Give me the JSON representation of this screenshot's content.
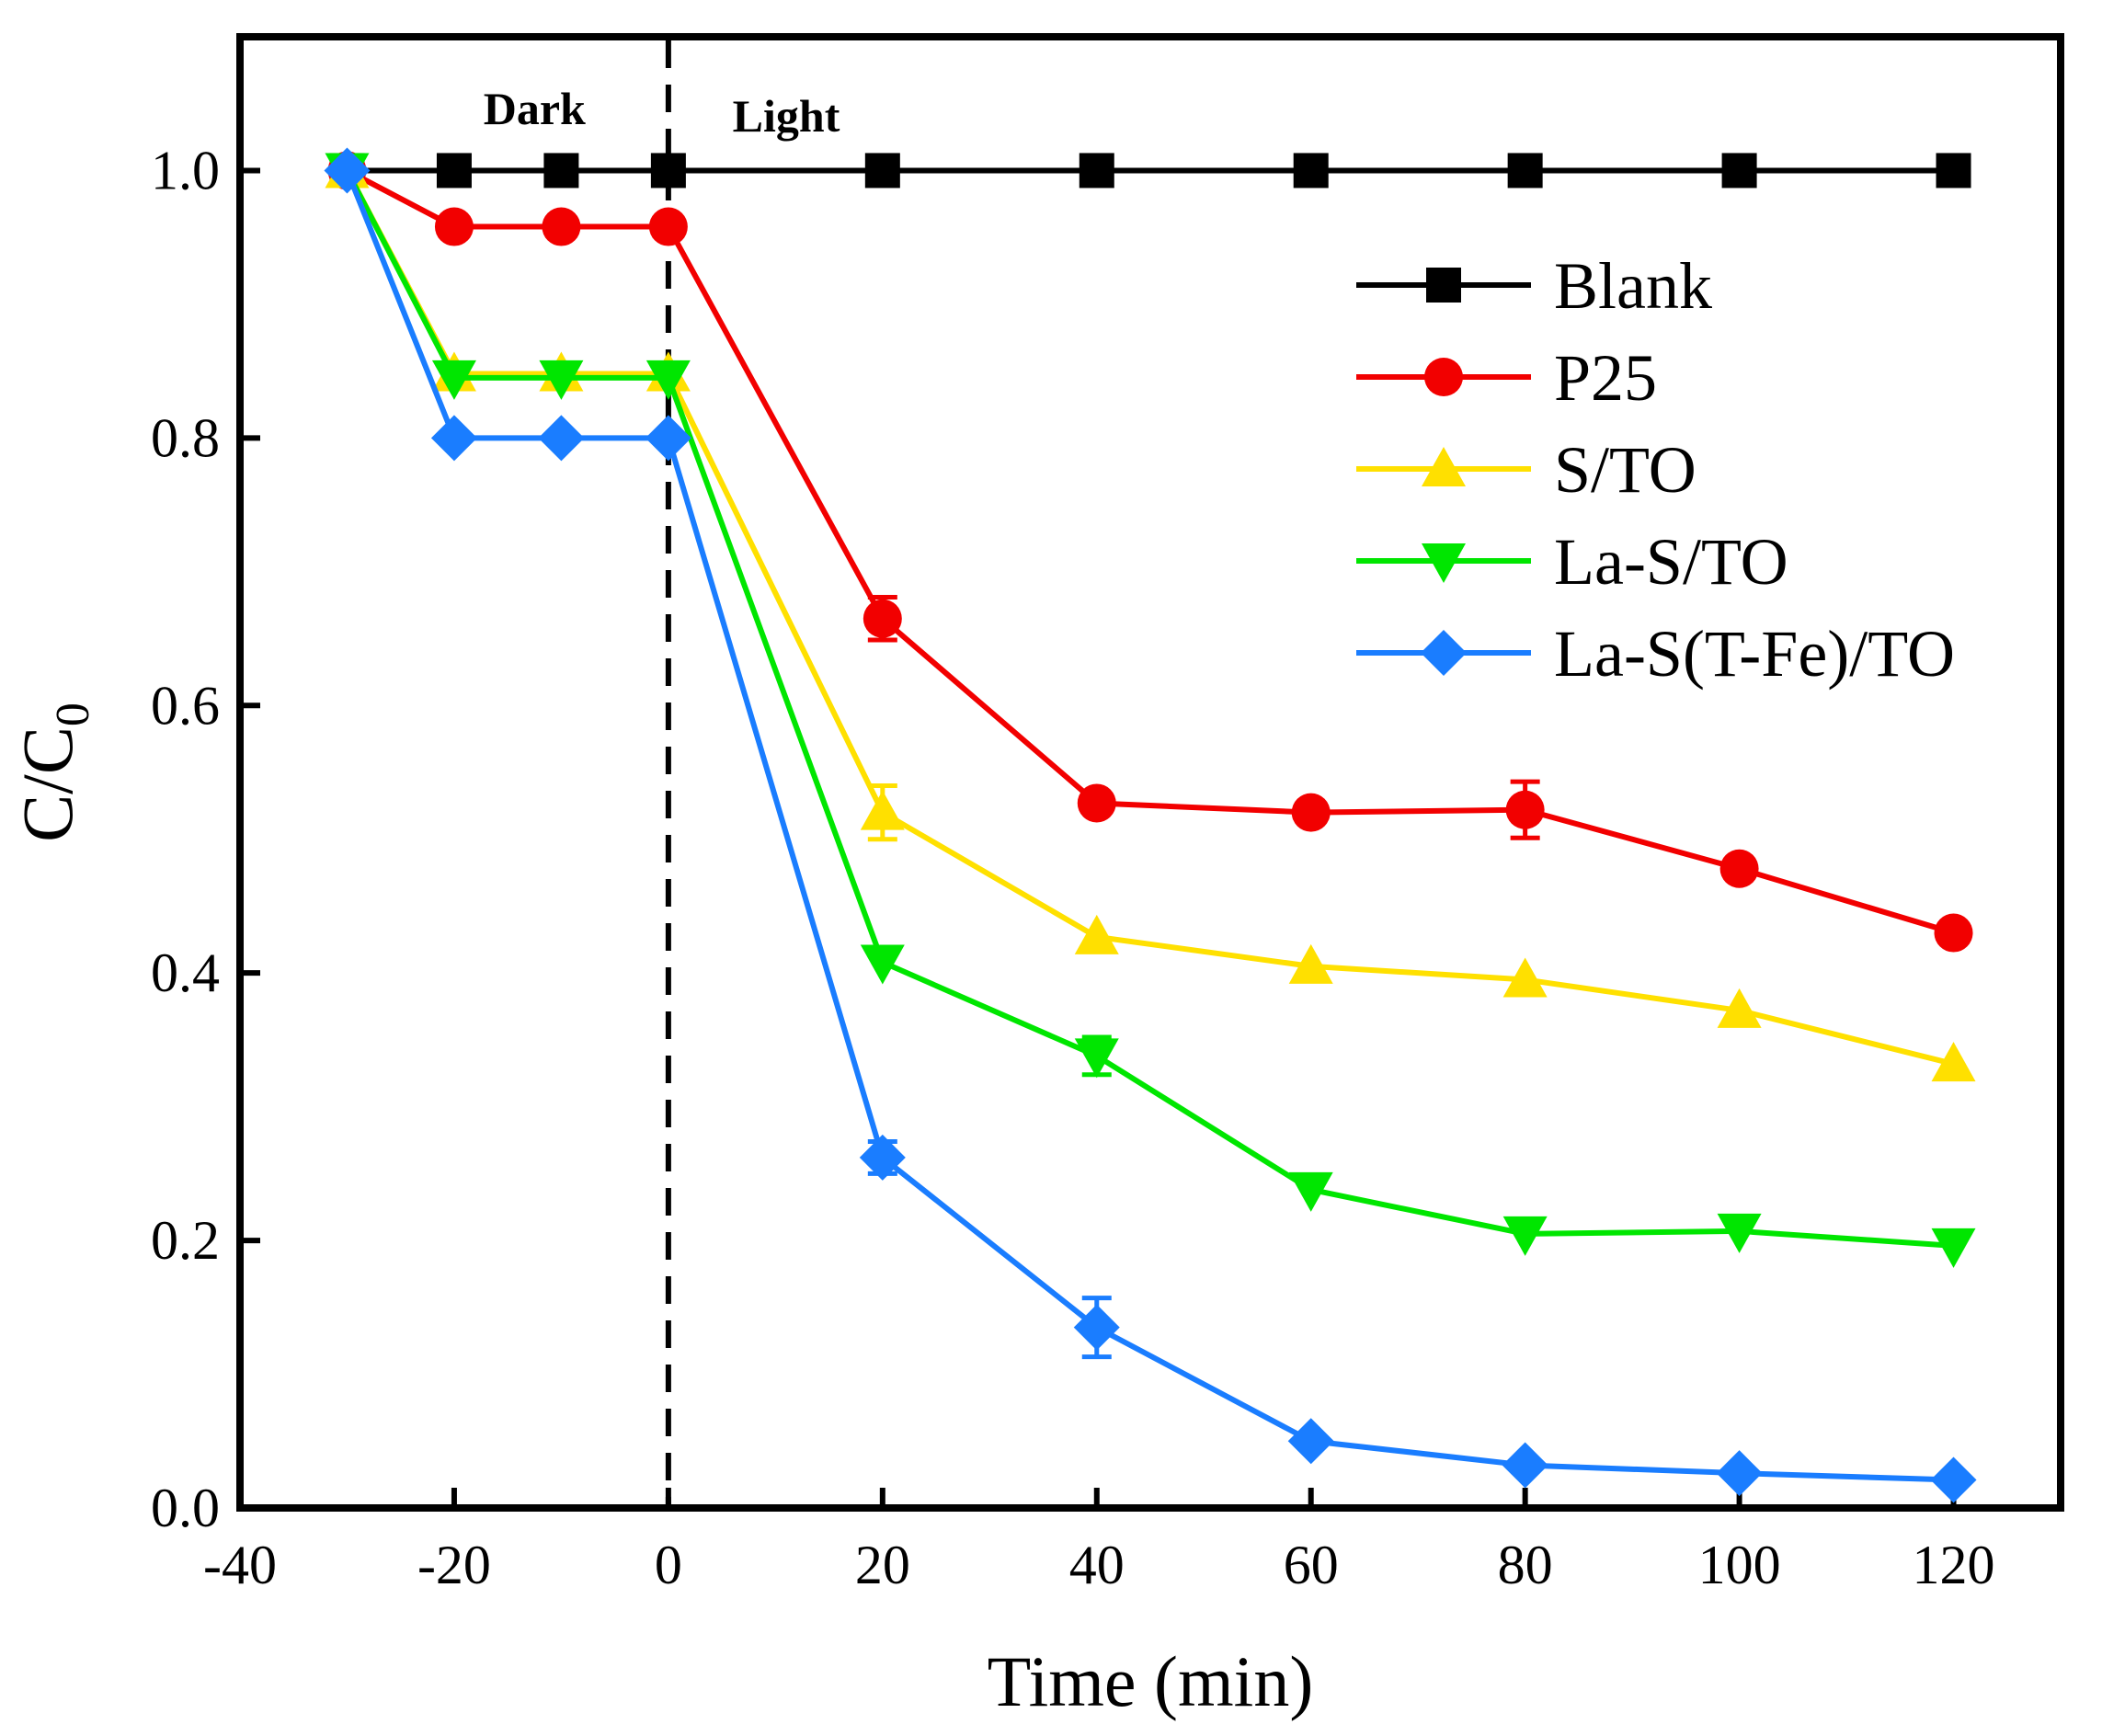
{
  "chart_data": {
    "type": "line",
    "title": "",
    "xlabel": "Time (min)",
    "ylabel": "C/C",
    "ylabel_subscript": "0",
    "xlim": [
      -40,
      130
    ],
    "ylim": [
      0.0,
      1.1
    ],
    "xticks": [
      -40,
      -20,
      0,
      20,
      40,
      60,
      80,
      100,
      120
    ],
    "xtick_labels": [
      "-40",
      "-20",
      "0",
      "20",
      "40",
      "60",
      "80",
      "100",
      "120"
    ],
    "yticks": [
      0.0,
      0.2,
      0.4,
      0.6,
      0.8,
      1.0
    ],
    "ytick_labels": [
      "0.0",
      "0.2",
      "0.4",
      "0.6",
      "0.8",
      "1.0"
    ],
    "grid": false,
    "legend_position": "top-right",
    "annotations": {
      "dark": "Dark",
      "light": "Light",
      "divider_x": 0
    },
    "series": [
      {
        "name": "Blank",
        "color": "#000000",
        "marker": "square",
        "x": [
          -30,
          -20,
          -10,
          0,
          20,
          40,
          60,
          80,
          100,
          120
        ],
        "y": [
          1.0,
          1.0,
          1.0,
          1.0,
          1.0,
          1.0,
          1.0,
          1.0,
          1.0,
          1.0
        ],
        "err": [
          0,
          0,
          0,
          0,
          0,
          0,
          0,
          0,
          0,
          0
        ]
      },
      {
        "name": "P25",
        "color": "#f20000",
        "marker": "circle",
        "x": [
          -30,
          -20,
          -10,
          0,
          20,
          40,
          60,
          80,
          100,
          120
        ],
        "y": [
          1.0,
          0.958,
          0.958,
          0.958,
          0.665,
          0.527,
          0.52,
          0.522,
          0.478,
          0.43
        ],
        "err": [
          0,
          0,
          0,
          0,
          0.016,
          0,
          0,
          0.021,
          0,
          0
        ]
      },
      {
        "name": "S/TO",
        "color": "#ffe000",
        "marker": "triangle-up",
        "x": [
          -30,
          -20,
          -10,
          0,
          20,
          40,
          60,
          80,
          100,
          120
        ],
        "y": [
          1.0,
          0.848,
          0.848,
          0.848,
          0.52,
          0.427,
          0.405,
          0.395,
          0.372,
          0.332
        ],
        "err": [
          0,
          0,
          0,
          0,
          0.02,
          0,
          0,
          0,
          0,
          0
        ]
      },
      {
        "name": "La-S/TO",
        "color": "#00e600",
        "marker": "triangle-down",
        "x": [
          -30,
          -20,
          -10,
          0,
          20,
          40,
          60,
          80,
          100,
          120
        ],
        "y": [
          1.0,
          0.845,
          0.845,
          0.845,
          0.408,
          0.338,
          0.238,
          0.205,
          0.207,
          0.196
        ],
        "err": [
          0,
          0,
          0,
          0,
          0,
          0.014,
          0,
          0,
          0,
          0
        ]
      },
      {
        "name": "La-S(T-Fe)/TO",
        "color": "#1a7dff",
        "marker": "diamond",
        "x": [
          -30,
          -20,
          -10,
          0,
          20,
          40,
          60,
          80,
          100,
          120
        ],
        "y": [
          1.0,
          0.8,
          0.8,
          0.8,
          0.262,
          0.135,
          0.05,
          0.032,
          0.026,
          0.021
        ],
        "err": [
          0,
          0,
          0,
          0,
          0.012,
          0.022,
          0,
          0,
          0,
          0
        ]
      }
    ]
  }
}
